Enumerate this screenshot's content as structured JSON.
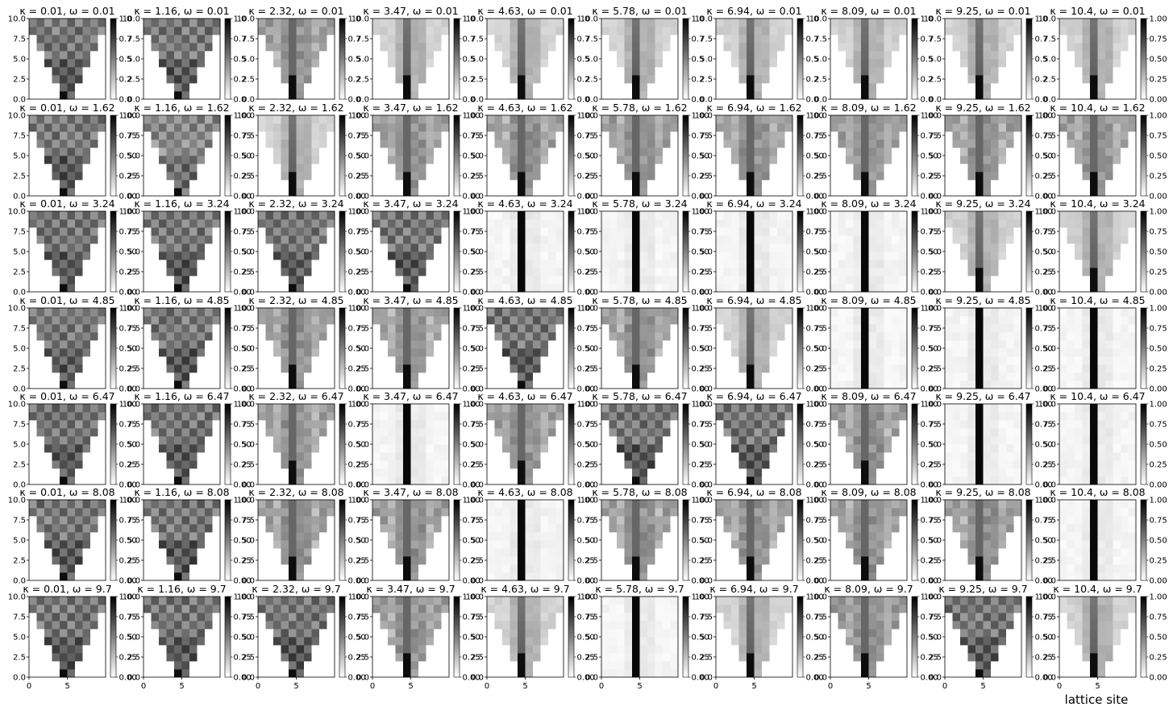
{
  "chart_data": {
    "type": "heatmap",
    "layout": {
      "rows": 7,
      "cols": 10
    },
    "kappa_labels": [
      "0.01",
      "1.16",
      "2.32",
      "3.47",
      "4.63",
      "5.78",
      "6.94",
      "8.09",
      "9.25",
      "10.4"
    ],
    "omega_labels": [
      "0.01",
      "1.62",
      "3.24",
      "4.85",
      "6.47",
      "8.08",
      "9.7"
    ],
    "title_template": "κ = {kappa}, ω = {omega}",
    "xlabel": "lattice site",
    "ylabel": "",
    "xlim": [
      0,
      10
    ],
    "ylim": [
      0,
      10
    ],
    "x_ticks": [
      "0",
      "5"
    ],
    "y_ticks": [
      "0.0",
      "2.5",
      "5.0",
      "7.5",
      "10.0"
    ],
    "colorbar": {
      "colormap": "gray_r",
      "range": [
        0,
        1
      ],
      "ticks_full": [
        "0.00",
        "0.25",
        "0.50",
        "0.75",
        "1.00"
      ],
      "ticks_truncated": [
        "0.0",
        "0.2",
        "0.5",
        "0.7",
        "1.0"
      ]
    },
    "panel_pattern": [
      [
        "spread",
        "spread",
        "mixed",
        "loc-mid",
        "loc-mid",
        "loc-mid",
        "loc-mid",
        "loc-mid",
        "loc-mid",
        "loc-mid"
      ],
      [
        "spread",
        "spread-light",
        "loc-mid",
        "mixed",
        "mixed",
        "mixed",
        "mixed",
        "mixed",
        "mixed",
        "mixed"
      ],
      [
        "spread",
        "spread",
        "spread",
        "spread",
        "loc-strong",
        "loc-strong",
        "loc-strong",
        "loc-strong",
        "loc-mid",
        "loc-mid"
      ],
      [
        "spread",
        "spread",
        "mixed",
        "mixed",
        "spread",
        "mixed",
        "loc-mid",
        "loc-strong",
        "loc-strong",
        "loc-strong"
      ],
      [
        "spread",
        "spread",
        "mixed",
        "loc-strong",
        "mixed",
        "spread",
        "spread",
        "mixed",
        "loc-strong",
        "loc-strong"
      ],
      [
        "spread",
        "spread",
        "mixed",
        "mixed",
        "loc-strong",
        "mixed",
        "mixed",
        "mixed",
        "mixed",
        "loc-strong"
      ],
      [
        "spread",
        "spread",
        "spread",
        "mixed",
        "loc-mid",
        "loc-strong",
        "loc-mid",
        "mixed",
        "spread",
        "loc-mid"
      ]
    ]
  }
}
